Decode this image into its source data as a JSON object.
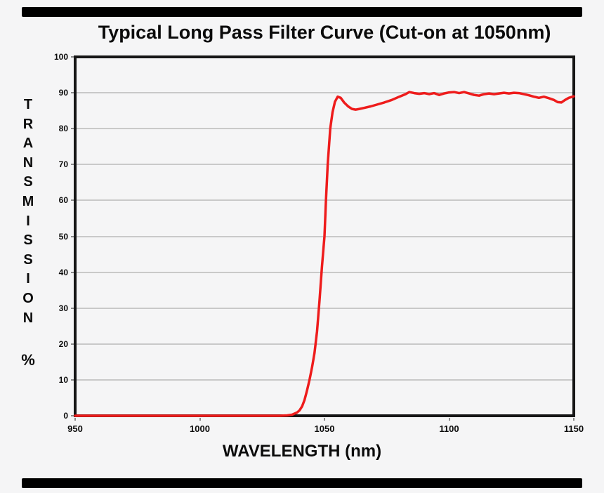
{
  "title": "Typical Long Pass Filter Curve (Cut-on at 1050nm)",
  "x_axis": {
    "label": "WAVELENGTH (nm)"
  },
  "y_axis": {
    "letters": [
      "T",
      "R",
      "A",
      "N",
      "S",
      "M",
      "I",
      "S",
      "S",
      "I",
      "O",
      "N"
    ],
    "percent": "%"
  },
  "colors": {
    "background": "#f5f5f6",
    "curve": "#ee1c1c",
    "grid": "#c9c9c9",
    "frame": "#161616",
    "text": "#0b0b0b",
    "bars": "#000000"
  },
  "chart_data": {
    "type": "line",
    "title": "Typical Long Pass Filter Curve (Cut-on at 1050nm)",
    "xlabel": "WAVELENGTH (nm)",
    "ylabel": "TRANSMISSION %",
    "xlim": [
      950,
      1150
    ],
    "ylim": [
      0,
      100
    ],
    "x_ticks": [
      950,
      1000,
      1050,
      1100,
      1150
    ],
    "y_ticks": [
      0,
      10,
      20,
      30,
      40,
      50,
      60,
      70,
      80,
      90,
      100
    ],
    "grid": "horizontal",
    "legend": "none",
    "series": [
      {
        "name": "transmission",
        "color": "#ee1c1c",
        "points": [
          [
            950,
            0
          ],
          [
            975,
            0
          ],
          [
            1000,
            0
          ],
          [
            1015,
            0
          ],
          [
            1025,
            0
          ],
          [
            1032,
            0
          ],
          [
            1035,
            0.1
          ],
          [
            1037,
            0.3
          ],
          [
            1039,
            0.9
          ],
          [
            1040,
            1.5
          ],
          [
            1041,
            2.6
          ],
          [
            1042,
            4.4
          ],
          [
            1043,
            7
          ],
          [
            1044,
            10
          ],
          [
            1045,
            13.5
          ],
          [
            1046,
            17.5
          ],
          [
            1047,
            23.5
          ],
          [
            1048,
            32
          ],
          [
            1049,
            41.5
          ],
          [
            1050,
            50
          ],
          [
            1050.6,
            60
          ],
          [
            1051.3,
            70
          ],
          [
            1052.3,
            80
          ],
          [
            1053.2,
            84.5
          ],
          [
            1054.2,
            87.5
          ],
          [
            1055.3,
            88.9
          ],
          [
            1056.5,
            88.6
          ],
          [
            1058,
            87.2
          ],
          [
            1059.5,
            86.2
          ],
          [
            1061,
            85.5
          ],
          [
            1062.5,
            85.3
          ],
          [
            1064,
            85.5
          ],
          [
            1066,
            85.8
          ],
          [
            1068.5,
            86.2
          ],
          [
            1071,
            86.7
          ],
          [
            1074,
            87.3
          ],
          [
            1077,
            88
          ],
          [
            1080,
            88.9
          ],
          [
            1082.5,
            89.6
          ],
          [
            1084,
            90.2
          ],
          [
            1086,
            89.9
          ],
          [
            1088,
            89.7
          ],
          [
            1090,
            89.9
          ],
          [
            1092,
            89.6
          ],
          [
            1094,
            89.9
          ],
          [
            1096,
            89.4
          ],
          [
            1098,
            89.8
          ],
          [
            1100,
            90.1
          ],
          [
            1102,
            90.2
          ],
          [
            1104,
            89.9
          ],
          [
            1106,
            90.2
          ],
          [
            1108,
            89.8
          ],
          [
            1110,
            89.4
          ],
          [
            1112,
            89.2
          ],
          [
            1114,
            89.6
          ],
          [
            1116,
            89.8
          ],
          [
            1118,
            89.6
          ],
          [
            1120,
            89.8
          ],
          [
            1122,
            90.0
          ],
          [
            1124,
            89.8
          ],
          [
            1126,
            90.0
          ],
          [
            1128,
            89.9
          ],
          [
            1130,
            89.6
          ],
          [
            1132,
            89.3
          ],
          [
            1134,
            88.9
          ],
          [
            1136,
            88.6
          ],
          [
            1138,
            88.9
          ],
          [
            1140,
            88.5
          ],
          [
            1142,
            88.0
          ],
          [
            1143.5,
            87.4
          ],
          [
            1145,
            87.3
          ],
          [
            1146.5,
            88.0
          ],
          [
            1148,
            88.6
          ],
          [
            1149,
            88.8
          ],
          [
            1150,
            89.0
          ]
        ]
      }
    ]
  }
}
